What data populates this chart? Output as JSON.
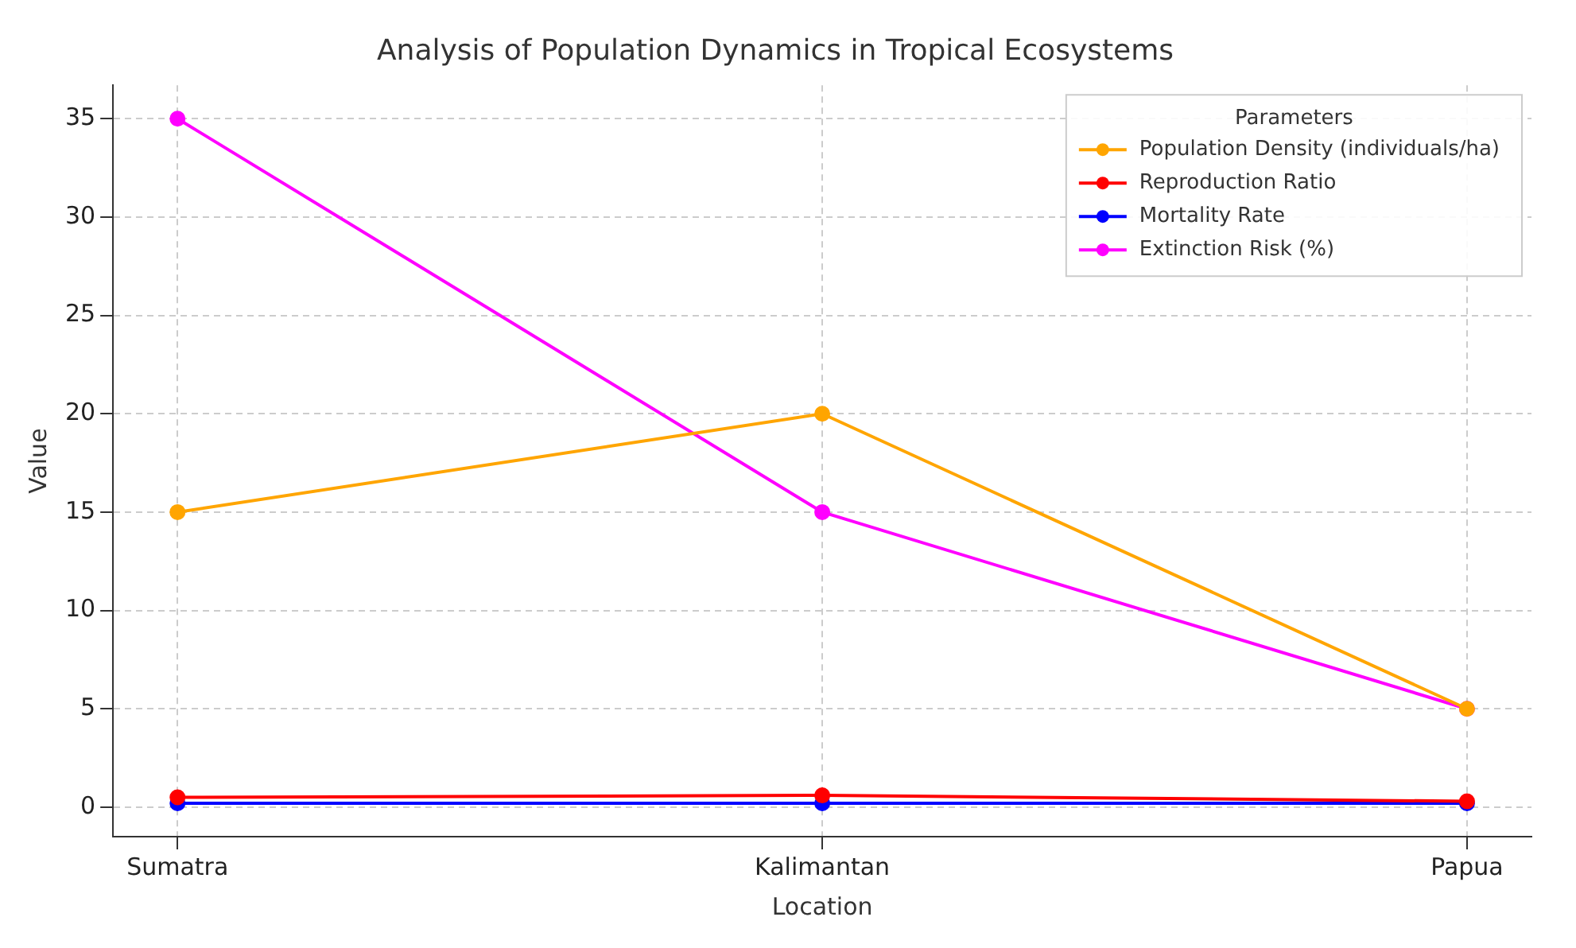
{
  "chart_data": {
    "type": "line",
    "title": "Analysis of Population Dynamics in Tropical Ecosystems",
    "xlabel": "Location",
    "ylabel": "Value",
    "legend_title": "Parameters",
    "categories": [
      "Sumatra",
      "Kalimantan",
      "Papua"
    ],
    "series": [
      {
        "name": "Population Density (individuals/ha)",
        "color": "#ffa500",
        "values": [
          15,
          20,
          5
        ]
      },
      {
        "name": "Reproduction Ratio",
        "color": "#ff0000",
        "values": [
          0.5,
          0.6,
          0.3
        ]
      },
      {
        "name": "Mortality Rate",
        "color": "#0000ff",
        "values": [
          0.2,
          0.2,
          0.2
        ]
      },
      {
        "name": "Extinction Risk (%)",
        "color": "#ff00ff",
        "values": [
          35,
          15,
          5
        ]
      }
    ],
    "ylim": [
      -1.5,
      36.7
    ],
    "yticks": [
      0,
      5,
      10,
      15,
      20,
      25,
      30,
      35
    ],
    "grid": true,
    "legend": "top right",
    "marker": "circle",
    "line_style": "solid"
  }
}
